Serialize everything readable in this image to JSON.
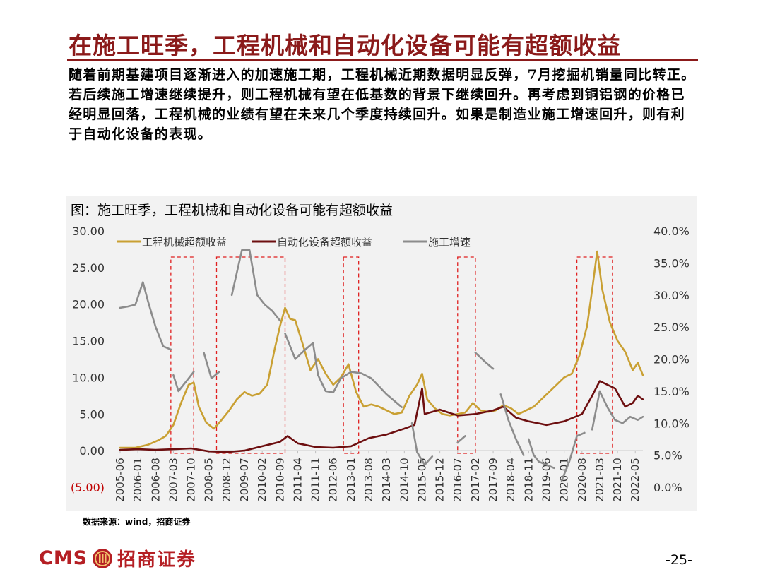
{
  "page": {
    "title": "在施工旺季，工程机械和自动化设备可能有超额收益",
    "body": "随着前期基建项目逐渐进入的加速施工期，工程机械近期数据明显反弹，7月挖掘机销量同比转正。若后续施工增速继续提升，则工程机械有望在低基数的背景下继续回升。再考虑到铜铝钢的价格已经明显回落，工程机械的业绩有望在未来几个季度持续回升。如果是制造业施工增速回升，则有利于自动化设备的表现。",
    "source": "数据来源：wind，招商证券",
    "page_number": "-25-",
    "logo_text": "CMS",
    "logo_cn": "招商证券"
  },
  "chart_data": {
    "type": "line",
    "title": "图：施工旺季，工程机械和自动化设备可能有超额收益",
    "x_ticks": [
      "2005-06",
      "2006-01",
      "2006-08",
      "2007-03",
      "2007-10",
      "2008-05",
      "2008-12",
      "2009-07",
      "2010-02",
      "2010-09",
      "2011-04",
      "2011-11",
      "2012-06",
      "2013-01",
      "2013-08",
      "2014-03",
      "2014-10",
      "2015-05",
      "2015-12",
      "2016-07",
      "2017-02",
      "2017-09",
      "2018-04",
      "2018-11",
      "2019-06",
      "2020-01",
      "2020-08",
      "2021-03",
      "2021-10",
      "2022-05"
    ],
    "y_left": {
      "ticks": [
        "30.00",
        "25.00",
        "20.00",
        "15.00",
        "10.00",
        "5.00",
        "0.00",
        "(5.00)"
      ],
      "range": [
        -5,
        30
      ]
    },
    "y_right": {
      "ticks": [
        "40.0%",
        "35.0%",
        "30.0%",
        "25.0%",
        "20.0%",
        "15.0%",
        "10.0%",
        "5.0%",
        "0.0%"
      ],
      "range": [
        0,
        40
      ]
    },
    "legend": [
      "工程机械超额收益",
      "自动化设备超额收益",
      "施工增速"
    ],
    "highlight_periods": [
      [
        "2007-02",
        "2007-11"
      ],
      [
        "2008-08",
        "2010-11"
      ],
      [
        "2012-10",
        "2013-04"
      ],
      [
        "2016-07",
        "2017-02"
      ],
      [
        "2020-06",
        "2021-08"
      ]
    ],
    "series": [
      {
        "name": "工程机械超额收益",
        "color": "#c9a033",
        "axis": "left",
        "points": [
          [
            "2005-06",
            0.4
          ],
          [
            "2005-12",
            0.4
          ],
          [
            "2006-05",
            0.8
          ],
          [
            "2006-09",
            1.4
          ],
          [
            "2006-12",
            2.0
          ],
          [
            "2007-03",
            3.5
          ],
          [
            "2007-06",
            6.5
          ],
          [
            "2007-09",
            9.0
          ],
          [
            "2007-11",
            9.3
          ],
          [
            "2008-01",
            6.0
          ],
          [
            "2008-04",
            3.8
          ],
          [
            "2008-07",
            3.0
          ],
          [
            "2008-10",
            4.2
          ],
          [
            "2009-01",
            5.5
          ],
          [
            "2009-04",
            7.0
          ],
          [
            "2009-07",
            8.0
          ],
          [
            "2009-10",
            7.5
          ],
          [
            "2010-01",
            7.8
          ],
          [
            "2010-04",
            9.0
          ],
          [
            "2010-07",
            14.0
          ],
          [
            "2010-09",
            17.0
          ],
          [
            "2010-11",
            19.5
          ],
          [
            "2011-01",
            18.0
          ],
          [
            "2011-03",
            17.8
          ],
          [
            "2011-06",
            14.5
          ],
          [
            "2011-09",
            11.0
          ],
          [
            "2011-12",
            12.5
          ],
          [
            "2012-03",
            10.5
          ],
          [
            "2012-06",
            9.0
          ],
          [
            "2012-09",
            10.0
          ],
          [
            "2012-12",
            11.8
          ],
          [
            "2013-03",
            8.0
          ],
          [
            "2013-06",
            6.0
          ],
          [
            "2013-09",
            6.3
          ],
          [
            "2013-12",
            6.0
          ],
          [
            "2014-03",
            5.5
          ],
          [
            "2014-06",
            5.0
          ],
          [
            "2014-09",
            5.2
          ],
          [
            "2014-12",
            7.5
          ],
          [
            "2015-03",
            9.0
          ],
          [
            "2015-05",
            10.5
          ],
          [
            "2015-07",
            7.0
          ],
          [
            "2015-10",
            5.8
          ],
          [
            "2016-01",
            5.0
          ],
          [
            "2016-04",
            4.8
          ],
          [
            "2016-07",
            5.0
          ],
          [
            "2016-10",
            5.2
          ],
          [
            "2017-01",
            6.5
          ],
          [
            "2017-04",
            5.5
          ],
          [
            "2017-07",
            5.3
          ],
          [
            "2017-10",
            5.5
          ],
          [
            "2018-01",
            6.2
          ],
          [
            "2018-04",
            5.8
          ],
          [
            "2018-07",
            5.0
          ],
          [
            "2018-10",
            5.5
          ],
          [
            "2019-01",
            6.0
          ],
          [
            "2019-04",
            7.0
          ],
          [
            "2019-07",
            8.0
          ],
          [
            "2019-10",
            9.0
          ],
          [
            "2020-01",
            10.0
          ],
          [
            "2020-04",
            10.5
          ],
          [
            "2020-07",
            13.0
          ],
          [
            "2020-10",
            17.0
          ],
          [
            "2020-12",
            22.0
          ],
          [
            "2021-02",
            27.2
          ],
          [
            "2021-04",
            22.0
          ],
          [
            "2021-07",
            17.5
          ],
          [
            "2021-10",
            15.0
          ],
          [
            "2022-01",
            13.5
          ],
          [
            "2022-04",
            11.0
          ],
          [
            "2022-06",
            12.0
          ],
          [
            "2022-08",
            10.3
          ]
        ]
      },
      {
        "name": "自动化设备超额收益",
        "color": "#6d0f10",
        "axis": "left",
        "points": [
          [
            "2005-06",
            0.1
          ],
          [
            "2006-01",
            0.2
          ],
          [
            "2006-08",
            0.1
          ],
          [
            "2007-03",
            0.2
          ],
          [
            "2007-10",
            0.3
          ],
          [
            "2008-05",
            -0.1
          ],
          [
            "2008-12",
            -0.2
          ],
          [
            "2009-07",
            0.0
          ],
          [
            "2010-02",
            0.6
          ],
          [
            "2010-09",
            1.2
          ],
          [
            "2010-12",
            2.0
          ],
          [
            "2011-04",
            1.0
          ],
          [
            "2011-11",
            0.5
          ],
          [
            "2012-06",
            0.4
          ],
          [
            "2013-01",
            0.6
          ],
          [
            "2013-08",
            1.7
          ],
          [
            "2014-03",
            2.2
          ],
          [
            "2014-10",
            3.0
          ],
          [
            "2015-02",
            3.5
          ],
          [
            "2015-05",
            8.5
          ],
          [
            "2015-06",
            5.0
          ],
          [
            "2015-12",
            5.6
          ],
          [
            "2016-07",
            4.8
          ],
          [
            "2017-02",
            5.0
          ],
          [
            "2017-09",
            5.5
          ],
          [
            "2018-01",
            6.0
          ],
          [
            "2018-06",
            4.5
          ],
          [
            "2018-11",
            4.0
          ],
          [
            "2019-06",
            3.5
          ],
          [
            "2020-01",
            4.0
          ],
          [
            "2020-08",
            5.0
          ],
          [
            "2020-12",
            7.5
          ],
          [
            "2021-03",
            9.5
          ],
          [
            "2021-06",
            9.0
          ],
          [
            "2021-09",
            8.5
          ],
          [
            "2022-01",
            6.0
          ],
          [
            "2022-04",
            6.5
          ],
          [
            "2022-06",
            7.5
          ],
          [
            "2022-08",
            7.0
          ]
        ]
      },
      {
        "name": "施工增速",
        "color": "#8c8c8c",
        "axis": "right",
        "segments": [
          [
            [
              "2005-06",
              28.0
            ],
            [
              "2005-09",
              28.2
            ],
            [
              "2005-12",
              28.5
            ],
            [
              "2006-03",
              32.0
            ],
            [
              "2006-05",
              29.0
            ],
            [
              "2006-08",
              25.0
            ],
            [
              "2006-11",
              22.0
            ],
            [
              "2007-02",
              21.5
            ]
          ],
          [
            [
              "2007-03",
              17.5
            ],
            [
              "2007-05",
              15.0
            ],
            [
              "2007-08",
              16.5
            ],
            [
              "2007-11",
              18.0
            ]
          ],
          [
            [
              "2008-03",
              21.0
            ],
            [
              "2008-06",
              17.0
            ],
            [
              "2008-09",
              18.0
            ]
          ],
          [
            [
              "2009-02",
              30.0
            ],
            [
              "2009-06",
              37.0
            ],
            [
              "2009-09",
              37.0
            ],
            [
              "2009-12",
              30.0
            ],
            [
              "2010-03",
              28.5
            ],
            [
              "2010-06",
              27.5
            ],
            [
              "2010-09",
              26.0
            ]
          ],
          [
            [
              "2010-11",
              24.0
            ],
            [
              "2011-03",
              20.0
            ],
            [
              "2011-07",
              21.5
            ],
            [
              "2011-10",
              22.5
            ],
            [
              "2011-12",
              17.5
            ],
            [
              "2012-03",
              15.0
            ],
            [
              "2012-06",
              14.8
            ],
            [
              "2012-09",
              17.0
            ],
            [
              "2013-01",
              18.0
            ],
            [
              "2013-05",
              17.8
            ],
            [
              "2013-09",
              17.0
            ],
            [
              "2014-03",
              14.5
            ],
            [
              "2014-06",
              13.5
            ],
            [
              "2014-09",
              12.5
            ]
          ],
          [
            [
              "2015-01",
              10.0
            ],
            [
              "2015-03",
              5.5
            ],
            [
              "2015-06",
              3.5
            ],
            [
              "2015-09",
              4.8
            ]
          ],
          [
            [
              "2016-07",
              7.0
            ],
            [
              "2016-10",
              8.0
            ]
          ],
          [
            [
              "2017-02",
              21.0
            ],
            [
              "2017-06",
              19.5
            ],
            [
              "2017-09",
              18.5
            ]
          ],
          [
            [
              "2017-12",
              14.5
            ],
            [
              "2018-03",
              10.5
            ],
            [
              "2018-06",
              7.5
            ],
            [
              "2018-09",
              5.0
            ]
          ],
          [
            [
              "2018-11",
              7.5
            ],
            [
              "2019-01",
              5.0
            ],
            [
              "2019-03",
              4.0
            ],
            [
              "2019-06",
              3.5
            ],
            [
              "2019-09",
              3.0
            ]
          ],
          [
            [
              "2019-12",
              1.0
            ],
            [
              "2020-03",
              4.0
            ],
            [
              "2020-06",
              8.0
            ],
            [
              "2020-09",
              8.5
            ]
          ],
          [
            [
              "2020-12",
              9.0
            ],
            [
              "2021-03",
              15.0
            ],
            [
              "2021-06",
              12.5
            ],
            [
              "2021-09",
              10.5
            ],
            [
              "2021-12",
              10.0
            ],
            [
              "2022-03",
              11.0
            ],
            [
              "2022-06",
              10.5
            ],
            [
              "2022-08",
              11.0
            ]
          ]
        ]
      }
    ]
  }
}
